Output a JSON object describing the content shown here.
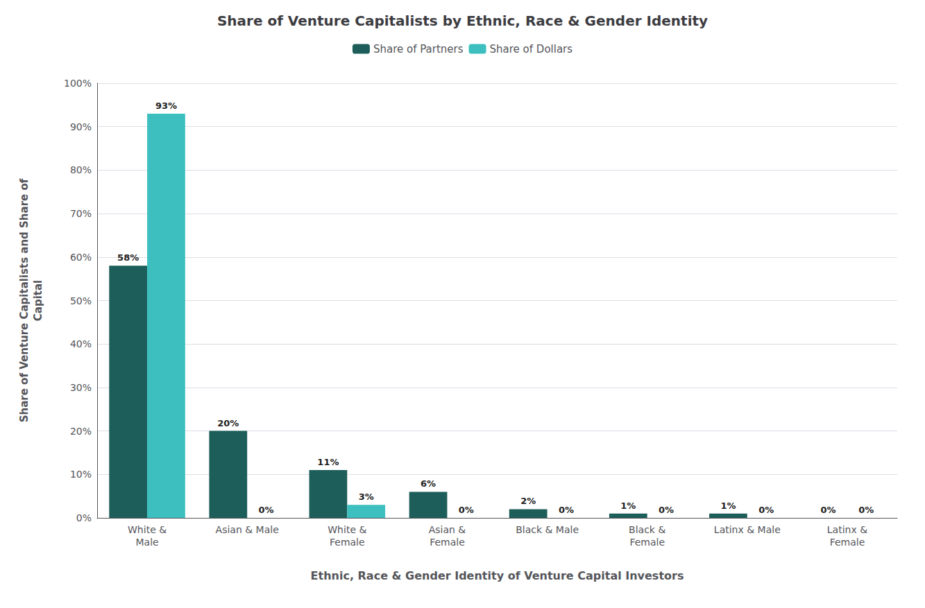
{
  "chart_data": {
    "type": "bar",
    "title": "Share of Venture Capitalists by Ethnic, Race & Gender Identity",
    "xlabel": "Ethnic, Race & Gender Identity of Venture Capital Investors",
    "ylabel": "Share of Venture Capitalists and Share of\nCapital",
    "categories": [
      "White &\nMale",
      "Asian & Male",
      "White &\nFemale",
      "Asian &\nFemale",
      "Black & Male",
      "Black &\nFemale",
      "Latinx & Male",
      "Latinx &\nFemale"
    ],
    "series": [
      {
        "name": "Share of Partners",
        "color": "#1d5e5a",
        "values": [
          58,
          20,
          11,
          6,
          2,
          1,
          1,
          0
        ],
        "value_labels": [
          "58%",
          "20%",
          "11%",
          "6%",
          "2%",
          "1%",
          "1%",
          "0%"
        ]
      },
      {
        "name": "Share of Dollars",
        "color": "#3dbfbf",
        "values": [
          93,
          0,
          3,
          0,
          0,
          0,
          0,
          0
        ],
        "value_labels": [
          "93%",
          "0%",
          "3%",
          "0%",
          "0%",
          "0%",
          "0%",
          "0%"
        ]
      }
    ],
    "ylim": [
      0,
      100
    ],
    "yticks": [
      {
        "value": 0,
        "label": "0%"
      },
      {
        "value": 10,
        "label": "10%"
      },
      {
        "value": 20,
        "label": "20%"
      },
      {
        "value": 30,
        "label": "30%"
      },
      {
        "value": 40,
        "label": "40%"
      },
      {
        "value": 50,
        "label": "50%"
      },
      {
        "value": 60,
        "label": "60%"
      },
      {
        "value": 70,
        "label": "70%"
      },
      {
        "value": 80,
        "label": "80%"
      },
      {
        "value": 90,
        "label": "90%"
      },
      {
        "value": 100,
        "label": "100%"
      }
    ],
    "grid": true,
    "legend": "top",
    "data_labels": true
  }
}
